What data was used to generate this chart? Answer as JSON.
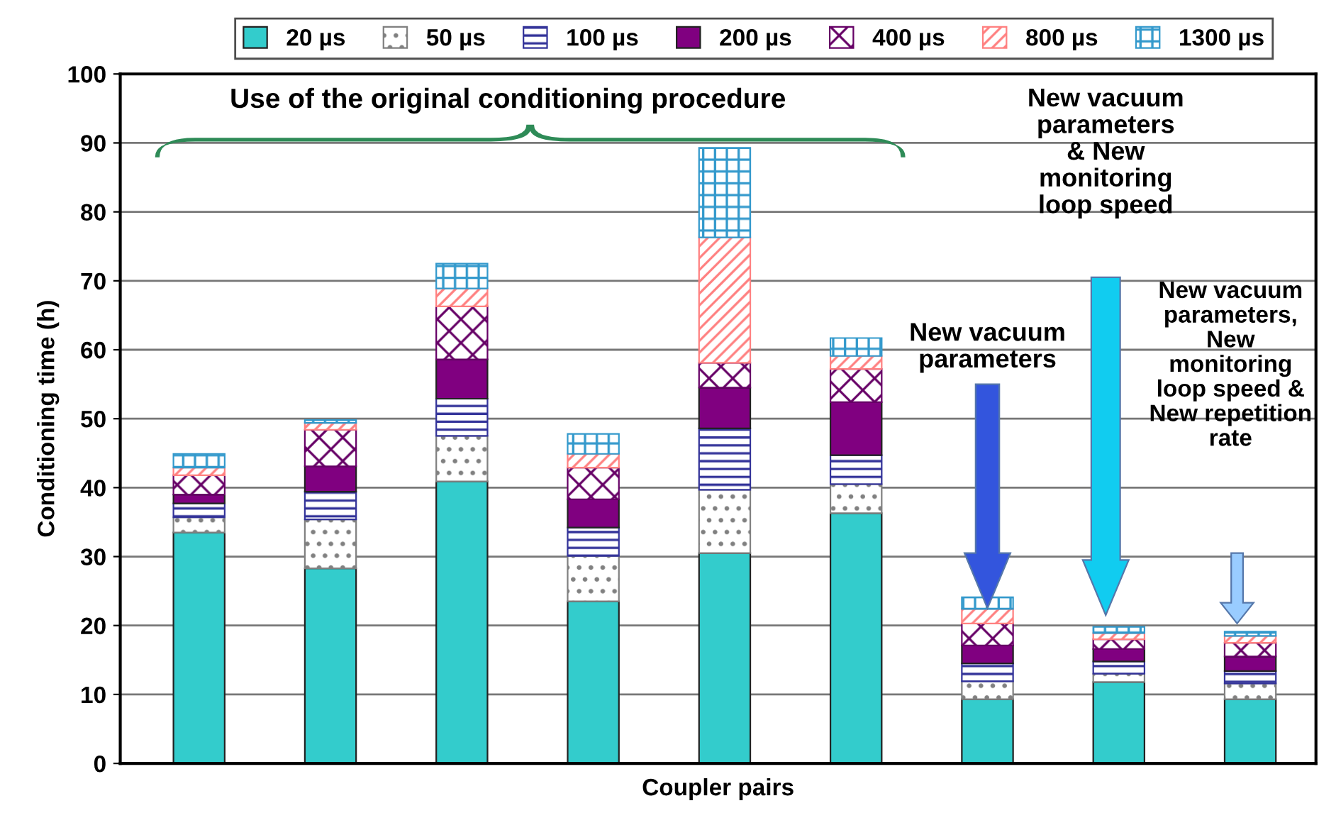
{
  "chart_data": {
    "type": "bar",
    "stacked": true,
    "xlabel": "Coupler pairs",
    "ylabel": "Conditioning time (h)",
    "categories": [
      null,
      null,
      null,
      null,
      null,
      null,
      null,
      null,
      null
    ],
    "series": [
      {
        "name": "20 µs",
        "color": "#33cccc",
        "values": [
          33.5,
          28.3,
          40.9,
          23.5,
          30.5,
          36.3,
          9.3,
          11.8,
          9.3
        ]
      },
      {
        "name": "50 µs",
        "color": "#808080",
        "values": [
          2.2,
          7.1,
          6.6,
          6.6,
          9.2,
          4.2,
          2.6,
          1.2,
          2.3
        ]
      },
      {
        "name": "100 µs",
        "color": "#333399",
        "values": [
          2.0,
          4.0,
          5.4,
          4.1,
          8.9,
          4.2,
          2.6,
          1.8,
          1.8
        ]
      },
      {
        "name": "200 µs",
        "color": "#800080",
        "values": [
          1.3,
          3.7,
          5.7,
          4.1,
          5.9,
          7.7,
          2.6,
          1.8,
          2.1
        ]
      },
      {
        "name": "400 µs",
        "color": "#660066",
        "values": [
          2.8,
          5.3,
          7.7,
          4.6,
          3.6,
          4.8,
          3.2,
          1.4,
          2.0
        ]
      },
      {
        "name": "800 µs",
        "color": "#ff8080",
        "values": [
          1.1,
          1.0,
          2.6,
          2.0,
          18.2,
          1.9,
          2.1,
          0.9,
          1.0
        ]
      },
      {
        "name": "1300 µs",
        "color": "#3399cc",
        "values": [
          2.0,
          0.4,
          3.6,
          2.9,
          13.0,
          2.6,
          1.7,
          0.9,
          0.6
        ]
      }
    ],
    "ylim": [
      0,
      100
    ],
    "yticks": [
      0,
      10,
      20,
      30,
      40,
      50,
      60,
      70,
      80,
      90,
      100
    ],
    "grid": "y",
    "legend": "top",
    "annotations": [
      "Use of the original conditioning procedure",
      "New vacuum\nparameters",
      "New vacuum\nparameters\n& New\nmonitoring\nloop speed",
      "New vacuum\nparameters,\nNew\nmonitoring\nloop speed &\nNew repetition\nrate"
    ]
  }
}
